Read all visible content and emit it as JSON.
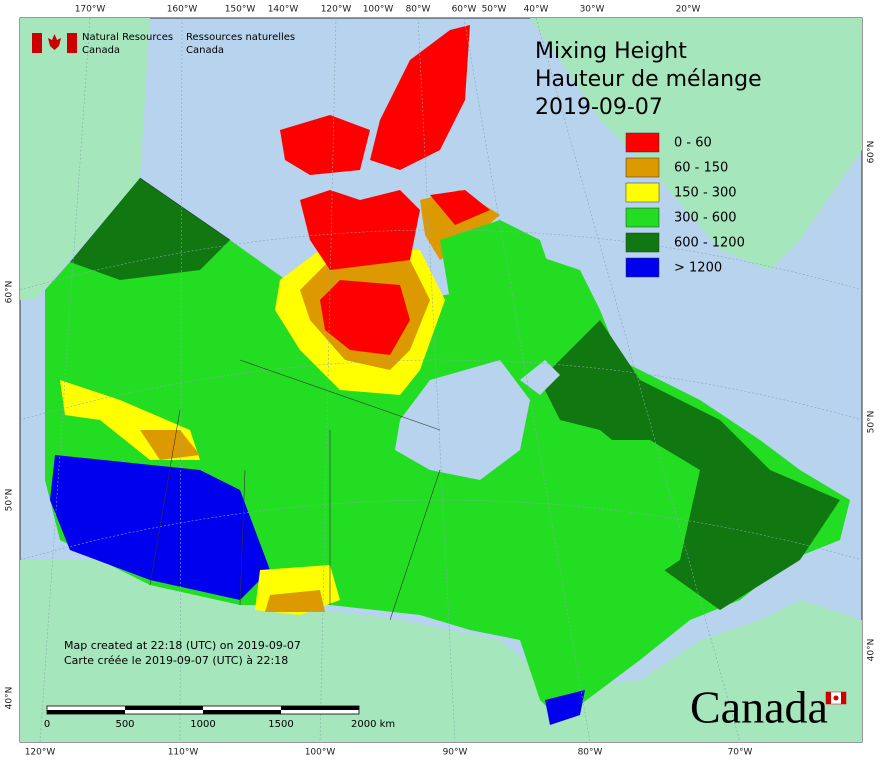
{
  "header": {
    "org_en": [
      "Natural Resources",
      "Canada"
    ],
    "org_fr": [
      "Ressources naturelles",
      "Canada"
    ]
  },
  "title": [
    "Mixing Height",
    "Hauteur de mélange",
    "2019-09-07"
  ],
  "legend": [
    {
      "label": "0 - 60",
      "color": "#ff0000"
    },
    {
      "label": "60 - 150",
      "color": "#dd9900"
    },
    {
      "label": "150 - 300",
      "color": "#ffff00"
    },
    {
      "label": "300 - 600",
      "color": "#22dd22"
    },
    {
      "label": "600 - 1200",
      "color": "#117711"
    },
    {
      "label": "> 1200",
      "color": "#0000ee"
    }
  ],
  "top_labels": [
    "170°W",
    "160°W",
    "150°W",
    "140°W",
    "120°W",
    "100°W",
    "80°W",
    "60°W",
    "50°W",
    "40°W",
    "30°W",
    "20°W"
  ],
  "bottom_labels": [
    "120°W",
    "110°W",
    "100°W",
    "90°W",
    "80°W",
    "70°W"
  ],
  "left_labels": [
    "60°N",
    "50°N",
    "40°N"
  ],
  "right_labels": [
    "60°N",
    "50°N",
    "40°N"
  ],
  "notes": [
    "Map created at 22:18 (UTC) on 2019-09-07",
    "Carte créée le 2019-09-07 (UTC) à 22:18"
  ],
  "scale_labels": [
    "0",
    "500",
    "1000",
    "1500",
    "2000  km"
  ],
  "wordmark": "Canada"
}
